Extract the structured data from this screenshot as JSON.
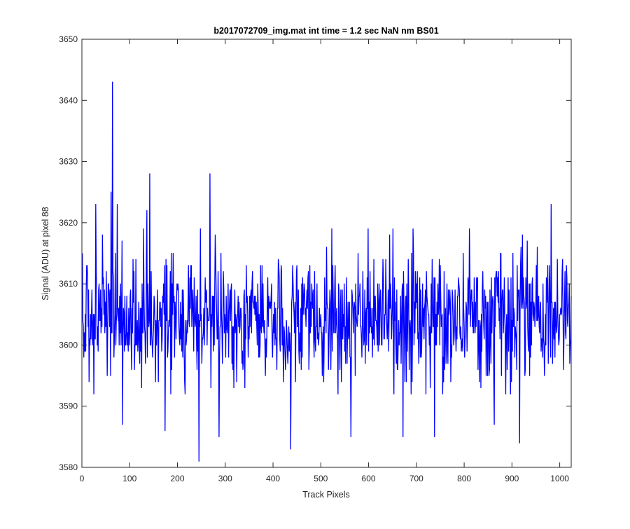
{
  "chart_data": {
    "type": "line",
    "title": "b2017072709_img.mat int time = 1.2 sec  NaN nm BS01",
    "xlabel": "Track Pixels",
    "ylabel": "Signal (ADU) at pixel 88",
    "xlim": [
      0,
      1024
    ],
    "ylim": [
      3580,
      3650
    ],
    "xticks": [
      "0",
      "100",
      "200",
      "300",
      "400",
      "500",
      "600",
      "700",
      "800",
      "900",
      "1000"
    ],
    "yticks": [
      "3580",
      "3590",
      "3600",
      "3610",
      "3620",
      "3630",
      "3640",
      "3650"
    ],
    "grid": false,
    "legend": "none",
    "series_color": "#0000ff",
    "series": [
      {
        "x_start": 1,
        "x_step": 1,
        "noise_mean": 3604.5,
        "noise_std": 5,
        "noise_range": [
          3592,
          3619
        ],
        "point_count": 1024,
        "extremes": [
          {
            "x": 64,
            "y": 3643
          },
          {
            "x": 61,
            "y": 3625
          },
          {
            "x": 142,
            "y": 3628
          },
          {
            "x": 268,
            "y": 3628
          },
          {
            "x": 29,
            "y": 3623
          },
          {
            "x": 74,
            "y": 3623
          },
          {
            "x": 982,
            "y": 3623
          },
          {
            "x": 136,
            "y": 3622
          },
          {
            "x": 245,
            "y": 3581
          },
          {
            "x": 437,
            "y": 3583
          },
          {
            "x": 85,
            "y": 3587
          },
          {
            "x": 174,
            "y": 3586
          },
          {
            "x": 563,
            "y": 3585
          },
          {
            "x": 672,
            "y": 3585
          },
          {
            "x": 738,
            "y": 3585
          },
          {
            "x": 916,
            "y": 3584
          },
          {
            "x": 863,
            "y": 3587
          },
          {
            "x": 287,
            "y": 3585
          }
        ]
      }
    ]
  }
}
